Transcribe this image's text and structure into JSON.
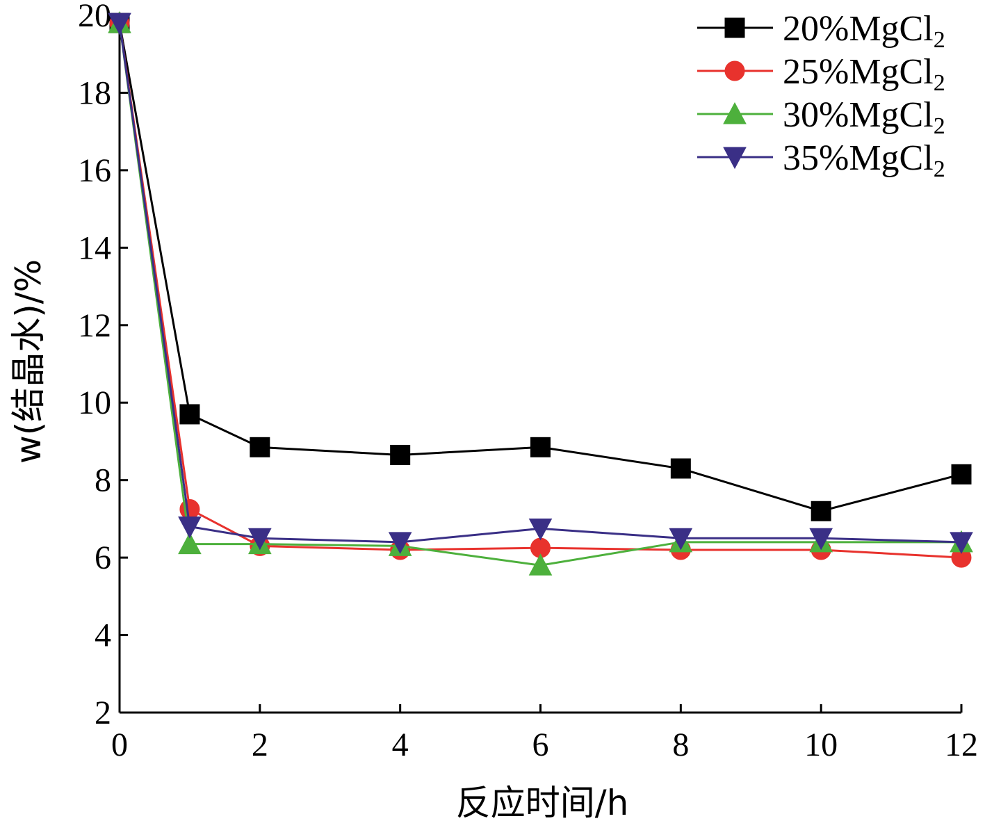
{
  "chart_data": {
    "type": "line",
    "xlabel": "反应时间/h",
    "ylabel": "w(结晶水)/%",
    "xlim": [
      0,
      12
    ],
    "ylim": [
      2,
      20
    ],
    "xticks": [
      0,
      2,
      4,
      6,
      8,
      10,
      12
    ],
    "yticks": [
      2,
      4,
      6,
      8,
      10,
      12,
      14,
      16,
      18,
      20
    ],
    "grid": false,
    "legend_position": "top-right",
    "series": [
      {
        "name": "20%MgCl2",
        "label_main": "20%MgCl",
        "label_sub": "2",
        "color": "#000000",
        "marker": "square",
        "x": [
          0,
          1,
          2,
          4,
          6,
          8,
          10,
          12
        ],
        "y": [
          19.8,
          9.7,
          8.85,
          8.65,
          8.85,
          8.3,
          7.2,
          8.15
        ]
      },
      {
        "name": "25%MgCl2",
        "label_main": "25%MgCl",
        "label_sub": "2",
        "color": "#e8322d",
        "marker": "circle",
        "x": [
          0,
          1,
          2,
          4,
          6,
          8,
          10,
          12
        ],
        "y": [
          19.8,
          7.25,
          6.3,
          6.2,
          6.25,
          6.2,
          6.2,
          6.0
        ]
      },
      {
        "name": "30%MgCl2",
        "label_main": "30%MgCl",
        "label_sub": "2",
        "color": "#4db03c",
        "marker": "triangle-up",
        "x": [
          0,
          1,
          2,
          4,
          6,
          8,
          10,
          12
        ],
        "y": [
          19.8,
          6.35,
          6.35,
          6.3,
          5.8,
          6.4,
          6.4,
          6.4
        ]
      },
      {
        "name": "35%MgCl2",
        "label_main": "35%MgCl",
        "label_sub": "2",
        "color": "#3a2f86",
        "marker": "triangle-down",
        "x": [
          0,
          1,
          2,
          4,
          6,
          8,
          10,
          12
        ],
        "y": [
          19.8,
          6.8,
          6.5,
          6.4,
          6.75,
          6.5,
          6.5,
          6.4
        ]
      }
    ]
  }
}
